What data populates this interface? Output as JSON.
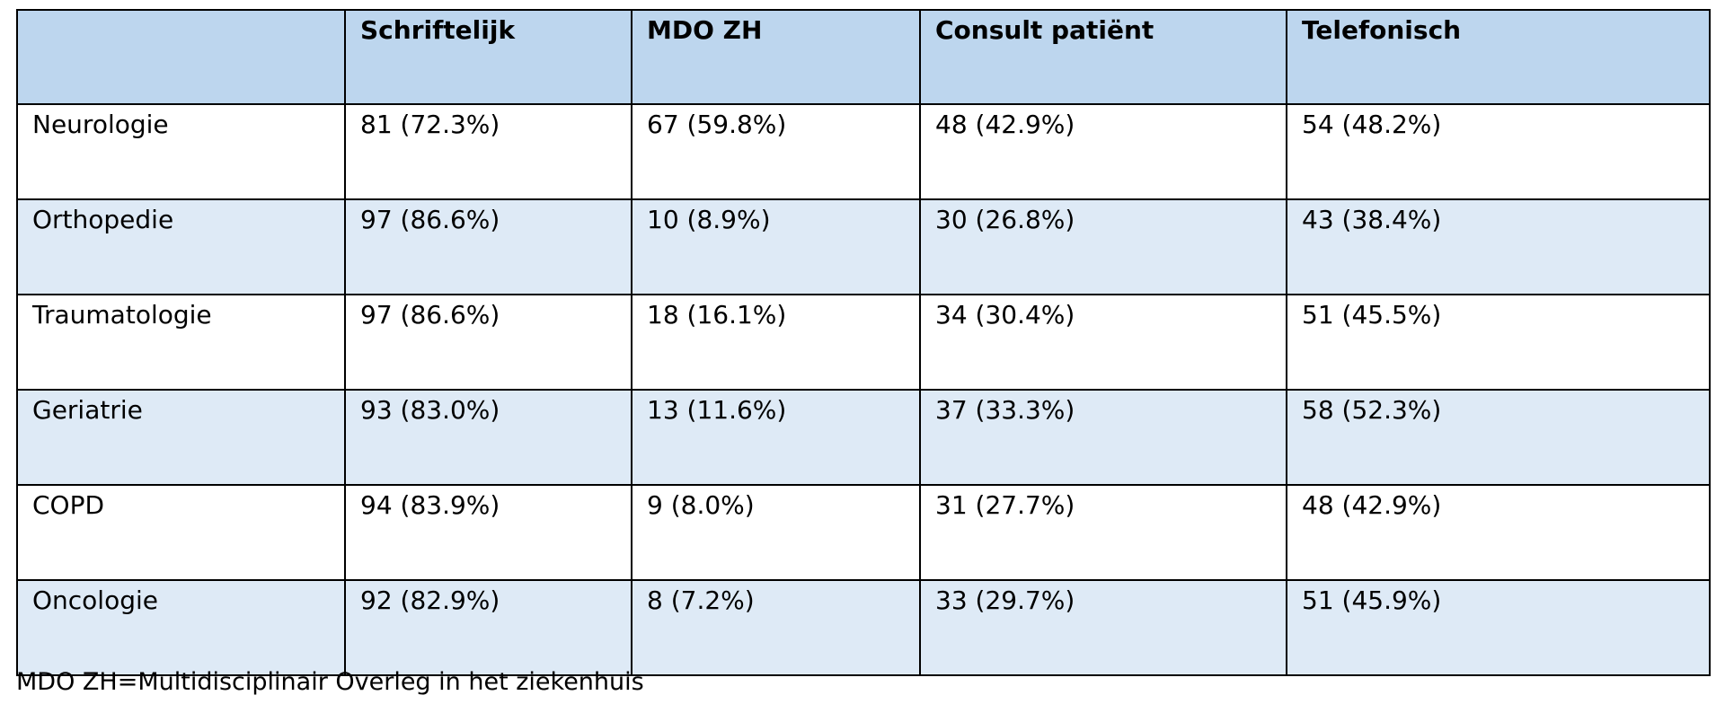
{
  "table": {
    "headers": [
      "",
      "Schriftelijk",
      "MDO ZH",
      "Consult patiënt",
      "Telefonisch"
    ],
    "rows": [
      [
        "Neurologie",
        "81 (72.3%)",
        "67 (59.8%)",
        "48 (42.9%)",
        "54 (48.2%)"
      ],
      [
        "Orthopedie",
        "97 (86.6%)",
        "10 (8.9%)",
        "30 (26.8%)",
        "43 (38.4%)"
      ],
      [
        "Traumatologie",
        "97 (86.6%)",
        "18 (16.1%)",
        "34 (30.4%)",
        "51 (45.5%)"
      ],
      [
        "Geriatrie",
        "93 (83.0%)",
        "13 (11.6%)",
        "37 (33.3%)",
        "58 (52.3%)"
      ],
      [
        "COPD",
        "94 (83.9%)",
        "9 (8.0%)",
        "31 (27.7%)",
        "48 (42.9%)"
      ],
      [
        "Oncologie",
        "92 (82.9%)",
        "8 (7.2%)",
        "33 (29.7%)",
        "51 (45.9%)"
      ]
    ]
  },
  "footnote": "MDO ZH=Multidisciplinair Overleg in het ziekenhuis",
  "colors": {
    "header_background": "#bdd6ee",
    "shaded_row_background": "#deeaf6",
    "plain_row_background": "#ffffff",
    "border": "#000000"
  }
}
